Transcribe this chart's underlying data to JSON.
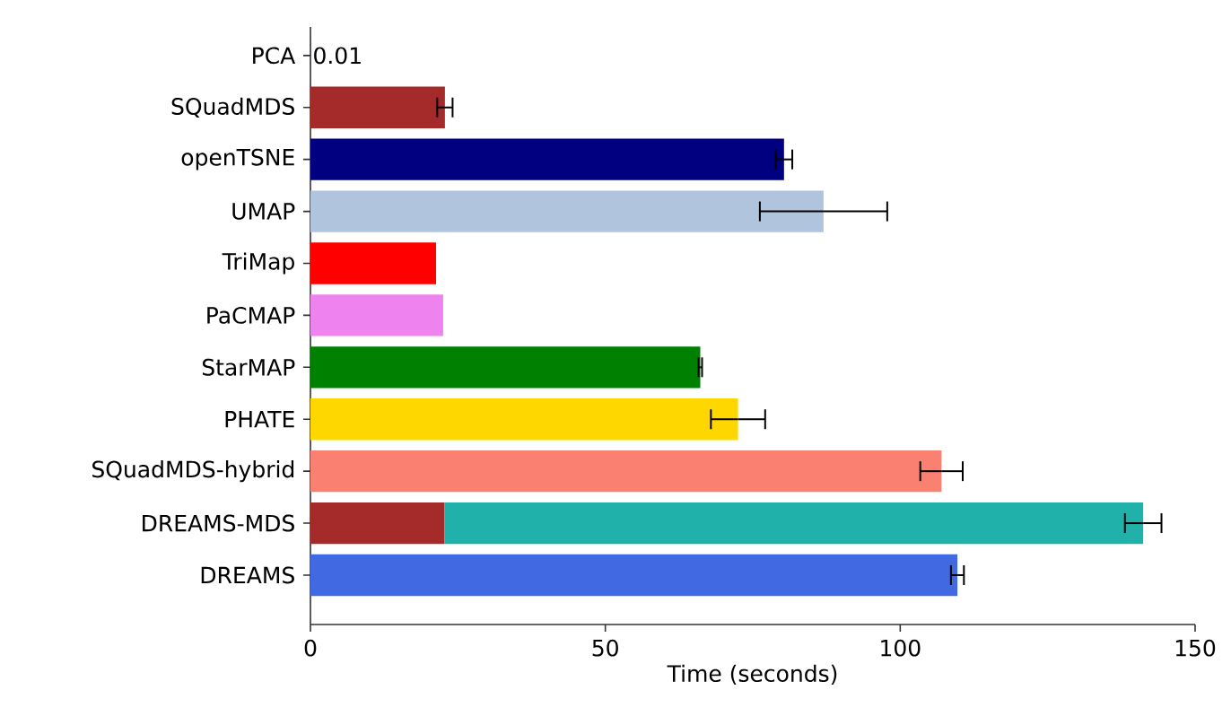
{
  "chart_data": {
    "type": "bar",
    "orientation": "horizontal",
    "stacked": true,
    "xlabel": "Time (seconds)",
    "xlim": [
      0,
      150
    ],
    "xticks": [
      0,
      50,
      100,
      150
    ],
    "categories": [
      "PCA",
      "SQuadMDS",
      "openTSNE",
      "UMAP",
      "TriMap",
      "PaCMAP",
      "StarMAP",
      "PHATE",
      "SQuadMDS-hybrid",
      "DREAMS-MDS",
      "DREAMS"
    ],
    "series": [
      {
        "colors": [
          "#000080",
          "#a52a2a",
          "#000080",
          "#b0c4de",
          "#ff0000",
          "#ee82ee",
          "#008000",
          "#ffd700",
          "#fa8072",
          "#a52a2a",
          "#4169e1"
        ],
        "values": [
          0.01,
          22.8,
          80.3,
          87.0,
          21.3,
          22.5,
          66.1,
          72.5,
          107.0,
          22.7,
          109.7
        ],
        "errors": [
          null,
          1.3,
          1.4,
          10.8,
          null,
          null,
          0.3,
          4.6,
          3.6,
          null,
          1.1
        ],
        "value_labels": [
          "0.01",
          null,
          null,
          null,
          null,
          null,
          null,
          null,
          null,
          null,
          null
        ]
      },
      {
        "color": "#20b2aa",
        "values": [
          null,
          null,
          null,
          null,
          null,
          null,
          null,
          null,
          null,
          118.5,
          null
        ],
        "errors": [
          null,
          null,
          null,
          null,
          null,
          null,
          null,
          null,
          null,
          3.1,
          null
        ]
      }
    ]
  }
}
